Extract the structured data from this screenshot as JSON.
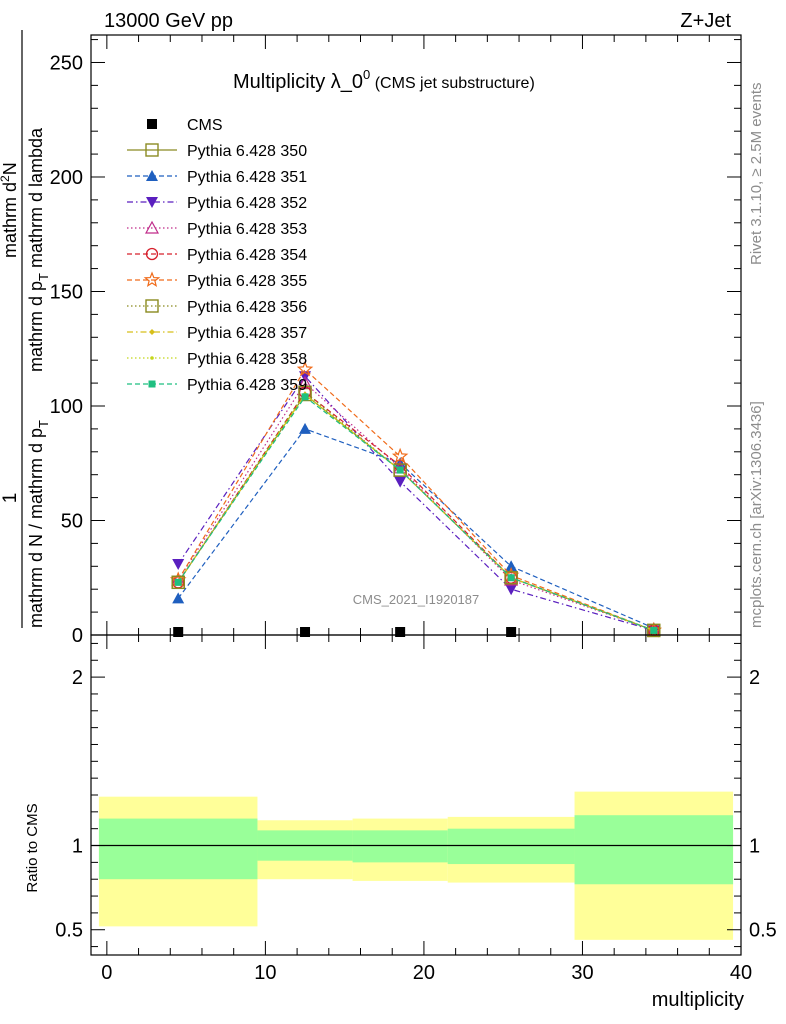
{
  "header": {
    "left": "13000 GeV pp",
    "right": "Z+Jet"
  },
  "side": {
    "rivet": "Rivet 3.1.10, ≥ 2.5M events",
    "mcplots": "mcplots.cern.ch [arXiv:1306.3436]"
  },
  "chart_data": [
    {
      "type": "line",
      "title_main": "Multiplicity λ_0",
      "title_sup": "0",
      "title_sub": " (CMS jet substructure)",
      "watermark": "CMS_2021_I1920187",
      "ylabel_parts": [
        "1",
        "mathrm d N / mathrm d p",
        "T",
        "mathrm d N",
        "mathrm d p",
        "T",
        " mathrm d lambda"
      ],
      "ylabel_lines": {
        "one": "1",
        "denominator": "mathrm d N / mathrm d p",
        "denominator_sub": "T",
        "numerator_head": "mathrm d",
        "numerator_sup": "2",
        "numerator_tail": "N",
        "numerator_line2": "mathrm d p",
        "numerator_line2_sub": "T",
        "numerator_line2_tail": " mathrm d lambda"
      },
      "xlim": [
        -1,
        40
      ],
      "ylim": [
        0,
        262
      ],
      "yticks": [
        0,
        50,
        100,
        150,
        200,
        250
      ],
      "x": [
        4.5,
        12.5,
        18.5,
        25.5,
        34.5
      ],
      "series": [
        {
          "name": "CMS",
          "color": "#000000",
          "marker": "square-filled",
          "dash": "solid",
          "values": [
            0,
            0,
            0,
            0,
            0
          ]
        },
        {
          "name": "Pythia 6.428 350",
          "color": "#8b8b23",
          "marker": "square-open",
          "dash": "solid",
          "values": [
            23,
            105,
            72,
            25,
            2
          ]
        },
        {
          "name": "Pythia 6.428 351",
          "color": "#1f5fbf",
          "marker": "triangle-up-filled",
          "dash": "dashed",
          "values": [
            16,
            90,
            75,
            30,
            3
          ]
        },
        {
          "name": "Pythia 6.428 352",
          "color": "#5a1fbf",
          "marker": "triangle-down-filled",
          "dash": "dashdot",
          "values": [
            31,
            113,
            67,
            20,
            2
          ]
        },
        {
          "name": "Pythia 6.428 353",
          "color": "#c02c8a",
          "marker": "triangle-up-open",
          "dash": "dotted",
          "values": [
            24,
            110,
            73,
            24,
            2
          ]
        },
        {
          "name": "Pythia 6.428 354",
          "color": "#d6202c",
          "marker": "circle-open",
          "dash": "dashed",
          "values": [
            23,
            106,
            74,
            25,
            2
          ]
        },
        {
          "name": "Pythia 6.428 355",
          "color": "#f06b1a",
          "marker": "star-open",
          "dash": "dashed",
          "values": [
            24,
            116,
            78,
            26,
            2
          ]
        },
        {
          "name": "Pythia 6.428 356",
          "color": "#8a8a1e",
          "marker": "square-open",
          "dash": "dotted",
          "values": [
            23,
            106,
            72,
            25,
            2
          ]
        },
        {
          "name": "Pythia 6.428 357",
          "color": "#d7bf1a",
          "marker": "diamond-small",
          "dash": "dashdot",
          "values": [
            23,
            105,
            72,
            25,
            2
          ]
        },
        {
          "name": "Pythia 6.428 358",
          "color": "#c4d61a",
          "marker": "dot",
          "dash": "dotted",
          "values": [
            23,
            105,
            72,
            25,
            2
          ]
        },
        {
          "name": "Pythia 6.428 359",
          "color": "#1fbf80",
          "marker": "square-small-filled",
          "dash": "dashed",
          "values": [
            23,
            104,
            72,
            25,
            2
          ]
        }
      ]
    },
    {
      "type": "area",
      "ylabel": "Ratio to CMS",
      "xlabel": "multiplicity",
      "xlim": [
        -1,
        40
      ],
      "ylim": [
        0.35,
        2.25
      ],
      "yticks": [
        0.5,
        1,
        2
      ],
      "ytick_labels": [
        "0.5",
        "1",
        "2"
      ],
      "xticks": [
        0,
        10,
        20,
        30,
        40
      ],
      "reference": 1,
      "bins": [
        {
          "lo": -0.5,
          "hi": 9.5,
          "inner": [
            0.8,
            1.16
          ],
          "outer": [
            0.52,
            1.29
          ]
        },
        {
          "lo": 9.5,
          "hi": 15.5,
          "inner": [
            0.91,
            1.09
          ],
          "outer": [
            0.8,
            1.15
          ]
        },
        {
          "lo": 15.5,
          "hi": 21.5,
          "inner": [
            0.9,
            1.09
          ],
          "outer": [
            0.79,
            1.16
          ]
        },
        {
          "lo": 21.5,
          "hi": 29.5,
          "inner": [
            0.89,
            1.1
          ],
          "outer": [
            0.78,
            1.17
          ]
        },
        {
          "lo": 29.5,
          "hi": 39.5,
          "inner": [
            0.77,
            1.18
          ],
          "outer": [
            0.44,
            1.32
          ]
        }
      ],
      "colors": {
        "inner": "#99ff99",
        "outer": "#ffff99"
      }
    }
  ]
}
